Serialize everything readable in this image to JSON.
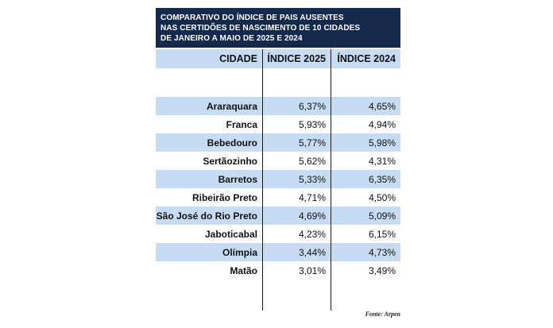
{
  "title_lines": [
    "COMPARATIVO DO ÍNDICE DE PAIS AUSENTES",
    "NAS CERTIDÕES DE NASCIMENTO DE 10 CIDADES",
    "DE JANEIRO A MAIO DE 2025 E 2024"
  ],
  "table": {
    "headers": [
      "CIDADE",
      "ÍNDICE 2025",
      "ÍNDICE 2024"
    ],
    "rows": [
      {
        "city": "Araraquara",
        "v2025": "6,37%",
        "v2024": "4,65%"
      },
      {
        "city": "Franca",
        "v2025": "5,93%",
        "v2024": "4,94%"
      },
      {
        "city": "Bebedouro",
        "v2025": "5,77%",
        "v2024": "5,98%"
      },
      {
        "city": "Sertãozinho",
        "v2025": "5,62%",
        "v2024": "4,31%"
      },
      {
        "city": "Barretos",
        "v2025": "5,33%",
        "v2024": "6,35%"
      },
      {
        "city": "Ribeirão Preto",
        "v2025": "4,71%",
        "v2024": "4,50%"
      },
      {
        "city": "São José do Rio Preto",
        "v2025": "4,69%",
        "v2024": "5,09%"
      },
      {
        "city": "Jaboticabal",
        "v2025": "4,23%",
        "v2024": "6,15%"
      },
      {
        "city": "Olímpia",
        "v2025": "3,44%",
        "v2024": "4,73%"
      },
      {
        "city": "Matão",
        "v2025": "3,01%",
        "v2024": "3,49%"
      }
    ]
  },
  "source": "Fonte: Arpen",
  "colors": {
    "banner": "#132a4d",
    "stripe": "#c5dcf3"
  }
}
